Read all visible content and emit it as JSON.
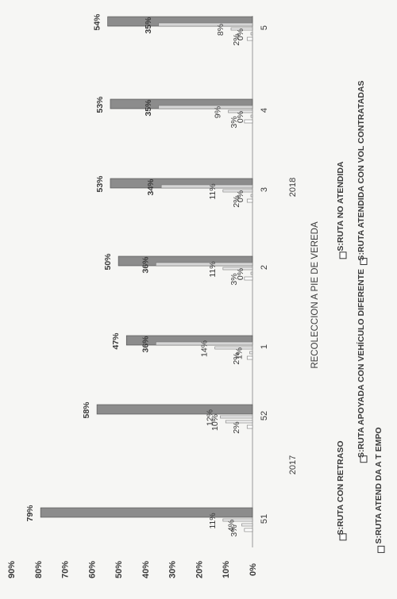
{
  "chart_data": {
    "type": "bar",
    "title": "RECOLECCION A PIE DE VEREDA",
    "orientation": "rotated-90",
    "ylim": [
      0,
      90
    ],
    "yticks": [
      "0%",
      "10%",
      "20%",
      "30%",
      "40%",
      "50%",
      "60%",
      "70%",
      "80%",
      "90%"
    ],
    "groups": [
      {
        "year": "2017",
        "categories": [
          "51",
          "52"
        ]
      },
      {
        "year": "2018",
        "categories": [
          "1",
          "2",
          "3",
          "4",
          "5"
        ]
      }
    ],
    "categories": [
      "51",
      "52",
      "1",
      "2",
      "3",
      "4",
      "5"
    ],
    "series": [
      {
        "name": "S:RUTA ATENDIDA A TIEMPO",
        "values": [
          79,
          58,
          47,
          50,
          53,
          53,
          54
        ],
        "labels": [
          "79%",
          "58%",
          "47%",
          "50%",
          "53%",
          "53%",
          "54%"
        ],
        "color": "#8c8c8c"
      },
      {
        "name": "S:RUTA ATENDIDA CON VOL CONTRATADAS",
        "values": [
          null,
          null,
          36,
          36,
          34,
          35,
          35
        ],
        "labels": [
          "",
          "",
          "36%",
          "36%",
          "34%",
          "35%",
          "35%"
        ],
        "color": "#d6d6d6"
      },
      {
        "name": "S:RUTA CON RETRASO",
        "values": [
          11,
          12,
          14,
          11,
          11,
          9,
          8
        ],
        "labels": [
          "11%",
          "12%",
          "14%",
          "11%",
          "11%",
          "9%",
          "8%"
        ],
        "color": "#ececec"
      },
      {
        "name": "S:RUTA APOYADA CON VEHÍCULO DIFERENTE",
        "values": [
          4,
          10,
          1,
          0,
          0,
          0,
          0
        ],
        "labels": [
          "4%",
          "10%",
          "1%",
          "0%",
          "0%",
          "0%",
          "0%"
        ],
        "color": "#f4f4f4"
      },
      {
        "name": "S:RUTA NO ATENDIDA",
        "values": [
          3,
          2,
          2,
          3,
          2,
          3,
          2
        ],
        "labels": [
          "3%",
          "2%",
          "2%",
          "3%",
          "2%",
          "3%",
          "2%"
        ],
        "color": "#ffffff"
      }
    ],
    "extra_labels": [
      "1%",
      "8%"
    ],
    "legend": {
      "placement": "bottom",
      "items": [
        "S:RUTA CON RETRASO",
        "S:RUTA NO ATENDIDA",
        "S:RUTA APOYADA CON VEHÍCULO DIFERENTE",
        "S:RUTA ATENDIDA CON VOL CONTRATADAS",
        "S:RUTA ATEND DA A T EMPO"
      ]
    }
  }
}
